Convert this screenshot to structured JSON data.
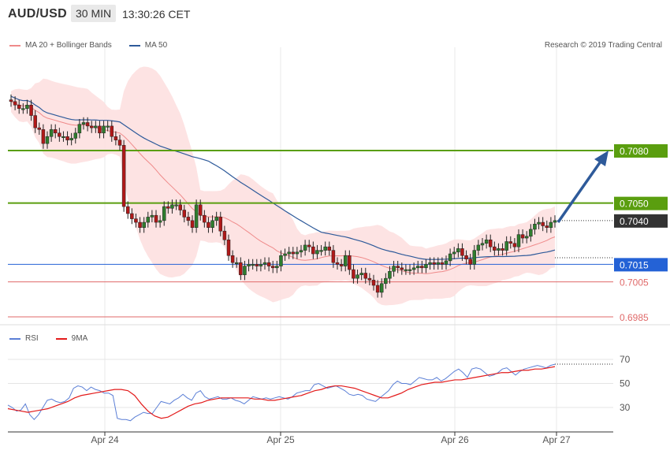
{
  "header": {
    "symbol": "AUD/USD",
    "timeframe": "30 MIN",
    "clock": "13:30:26 CET",
    "credit": "Research © 2019 Trading Central"
  },
  "legend_main": [
    {
      "label": "MA 20 + Bollinger Bands",
      "color": "#ef8a8a"
    },
    {
      "label": "MA 50",
      "color": "#2e5a9a"
    }
  ],
  "legend_rsi": [
    {
      "label": "RSI",
      "color": "#5b7fd6"
    },
    {
      "label": "9MA",
      "color": "#e31b1b"
    }
  ],
  "levels": [
    {
      "label": "0.7080",
      "value": 0.708,
      "kind": "resistance",
      "color": "#5a9e0f"
    },
    {
      "label": "0.7050",
      "value": 0.705,
      "kind": "resistance",
      "color": "#5a9e0f"
    },
    {
      "label": "0.7040",
      "value": 0.704,
      "kind": "last",
      "color": "#333333"
    },
    {
      "label": "0.7015",
      "value": 0.7015,
      "kind": "pivot",
      "color": "#2462d6"
    },
    {
      "label": "0.7005",
      "value": 0.7005,
      "kind": "support",
      "color": "#e06a6a"
    },
    {
      "label": "0.6985",
      "value": 0.6985,
      "kind": "support",
      "color": "#e06a6a"
    }
  ],
  "rsi_levels": [
    {
      "label": "70",
      "value": 70
    },
    {
      "label": "50",
      "value": 50
    },
    {
      "label": "30",
      "value": 30
    }
  ],
  "x_labels": [
    "Apr 24",
    "Apr 25",
    "Apr 26",
    "Apr 27"
  ],
  "chart_data": {
    "type": "candlestick",
    "y_range": [
      0.6985,
      0.712
    ],
    "rsi_range": [
      20,
      80
    ],
    "closes": [
      0.7108,
      0.7106,
      0.7104,
      0.7104,
      0.7106,
      0.71,
      0.7093,
      0.7092,
      0.7084,
      0.7088,
      0.7092,
      0.709,
      0.7088,
      0.7088,
      0.7086,
      0.7087,
      0.709,
      0.7095,
      0.7096,
      0.7094,
      0.7093,
      0.7094,
      0.709,
      0.7094,
      0.7094,
      0.7088,
      0.7086,
      0.7083,
      0.7048,
      0.7044,
      0.7041,
      0.7039,
      0.7036,
      0.7039,
      0.7042,
      0.7043,
      0.7039,
      0.704,
      0.7048,
      0.7047,
      0.7049,
      0.7049,
      0.7046,
      0.7042,
      0.704,
      0.7036,
      0.7049,
      0.7043,
      0.7039,
      0.7036,
      0.704,
      0.7042,
      0.7034,
      0.7029,
      0.702,
      0.7016,
      0.7016,
      0.7009,
      0.7014,
      0.7015,
      0.7015,
      0.7014,
      0.7015,
      0.7016,
      0.7014,
      0.7013,
      0.7014,
      0.702,
      0.7021,
      0.7022,
      0.7021,
      0.7022,
      0.7023,
      0.7026,
      0.7025,
      0.7021,
      0.7023,
      0.7023,
      0.7025,
      0.7023,
      0.7016,
      0.7015,
      0.7014,
      0.702,
      0.7012,
      0.7007,
      0.7009,
      0.701,
      0.7007,
      0.7006,
      0.7003,
      0.6999,
      0.7004,
      0.7007,
      0.7011,
      0.7014,
      0.7013,
      0.7012,
      0.7012,
      0.7012,
      0.7013,
      0.7014,
      0.7013,
      0.7015,
      0.7016,
      0.7015,
      0.7016,
      0.7015,
      0.7017,
      0.7021,
      0.7022,
      0.7024,
      0.702,
      0.7018,
      0.7015,
      0.7023,
      0.7026,
      0.7027,
      0.7029,
      0.7025,
      0.7023,
      0.7024,
      0.7023,
      0.7028,
      0.7027,
      0.7025,
      0.7032,
      0.703,
      0.7031,
      0.7035,
      0.7038,
      0.7039,
      0.7037,
      0.7036,
      0.7039,
      0.704
    ],
    "rsi": [
      32,
      30,
      27,
      28,
      33,
      24,
      20,
      24,
      30,
      36,
      37,
      35,
      34,
      35,
      38,
      46,
      48,
      47,
      44,
      47,
      45,
      44,
      42,
      42,
      40,
      21,
      20,
      20,
      19,
      22,
      24,
      26,
      25,
      25,
      30,
      35,
      34,
      33,
      36,
      38,
      41,
      38,
      36,
      42,
      44,
      39,
      37,
      38,
      39,
      37,
      37,
      38,
      36,
      35,
      33,
      36,
      39,
      38,
      37,
      38,
      37,
      38,
      39,
      38,
      37,
      39,
      42,
      43,
      44,
      44,
      49,
      50,
      48,
      46,
      47,
      48,
      46,
      44,
      41,
      40,
      41,
      40,
      37,
      36,
      35,
      38,
      41,
      44,
      49,
      52,
      50,
      50,
      49,
      52,
      55,
      54,
      53,
      53,
      55,
      52,
      54,
      57,
      60,
      62,
      59,
      55,
      62,
      63,
      62,
      59,
      56,
      57,
      59,
      62,
      63,
      60,
      57,
      60,
      62,
      63,
      64,
      65,
      64,
      63,
      65,
      66
    ],
    "rsi_ma": [
      29,
      28,
      27,
      26,
      27,
      28,
      29,
      31,
      33,
      35,
      38,
      40,
      41,
      42,
      43,
      44,
      45,
      45,
      44,
      40,
      33,
      27,
      23,
      21,
      22,
      25,
      28,
      31,
      33,
      34,
      36,
      37,
      38,
      38,
      38,
      38,
      38,
      37,
      37,
      36,
      36,
      37,
      38,
      39,
      40,
      42,
      44,
      45,
      47,
      48,
      48,
      47,
      46,
      44,
      42,
      40,
      38,
      38,
      40,
      42,
      45,
      47,
      49,
      50,
      51,
      51,
      52,
      53,
      53,
      54,
      55,
      56,
      57,
      58,
      59,
      59,
      60,
      61,
      61,
      62,
      62,
      63,
      64
    ]
  }
}
